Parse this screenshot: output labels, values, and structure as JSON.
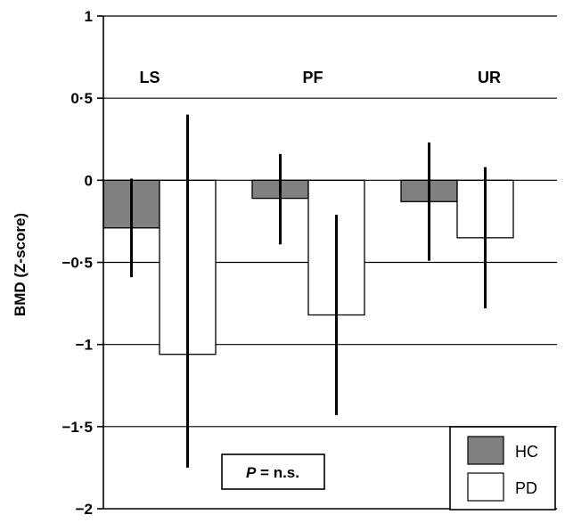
{
  "chart_data": {
    "type": "bar",
    "ylabel": "BMD (Z-score)",
    "ylim": [
      -2,
      1
    ],
    "yticks": [
      1,
      0.5,
      0,
      -0.5,
      -1,
      -1.5,
      -2
    ],
    "ytick_labels": [
      "1",
      "0·5",
      "0",
      "−0·5",
      "−1",
      "−1·5",
      "−2"
    ],
    "grid": true,
    "categories": [
      "LS",
      "PF",
      "UR"
    ],
    "series": [
      {
        "name": "HC",
        "color": "#808080",
        "values": [
          -0.29,
          -0.11,
          -0.13
        ],
        "error_low": [
          -0.59,
          -0.39,
          -0.49
        ],
        "error_high": [
          0.01,
          0.16,
          0.23
        ]
      },
      {
        "name": "PD",
        "color": "#ffffff",
        "values": [
          -1.06,
          -0.82,
          -0.35
        ],
        "error_low": [
          -1.75,
          -1.43,
          -0.78
        ],
        "error_high": [
          0.4,
          -0.21,
          0.08
        ]
      }
    ],
    "legend_position": "bottom-right",
    "annotation": {
      "label_italic": "P",
      "label_rest": " = n.s."
    }
  }
}
